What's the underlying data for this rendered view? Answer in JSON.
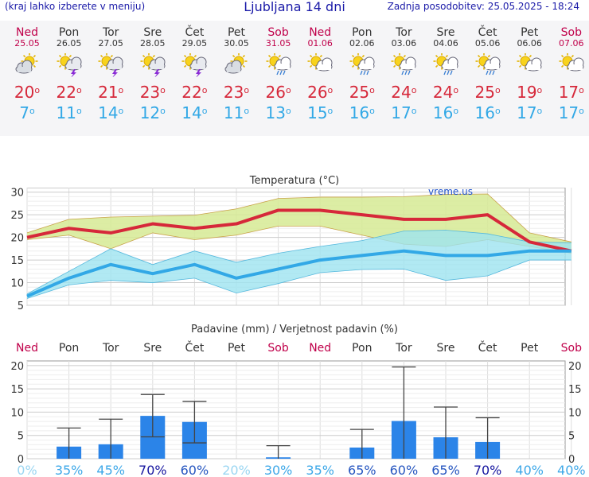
{
  "header": {
    "menu_hint": "(kraj lahko izberete v meniju)",
    "title": "Ljubljana 14 dni",
    "updated": "Zadnja posodobitev: 25.05.2025 - 18:24"
  },
  "forecast": [
    {
      "day": "Ned",
      "date": "25.05",
      "weekend": true,
      "icon": "partly-cloudy-icon",
      "tmax": "20",
      "tmin": "7"
    },
    {
      "day": "Pon",
      "date": "26.05",
      "weekend": false,
      "icon": "thunderstorm-sun-icon",
      "tmax": "22",
      "tmin": "11"
    },
    {
      "day": "Tor",
      "date": "27.05",
      "weekend": false,
      "icon": "thunderstorm-sun-icon",
      "tmax": "21",
      "tmin": "14"
    },
    {
      "day": "Sre",
      "date": "28.05",
      "weekend": false,
      "icon": "thunderstorm-sun-icon",
      "tmax": "23",
      "tmin": "12"
    },
    {
      "day": "Čet",
      "date": "29.05",
      "weekend": false,
      "icon": "thunderstorm-sun-icon",
      "tmax": "22",
      "tmin": "14"
    },
    {
      "day": "Pet",
      "date": "30.05",
      "weekend": false,
      "icon": "partly-cloudy-icon",
      "tmax": "23",
      "tmin": "11"
    },
    {
      "day": "Sob",
      "date": "31.05",
      "weekend": true,
      "icon": "sun-cloud-rain-icon",
      "tmax": "26",
      "tmin": "13"
    },
    {
      "day": "Ned",
      "date": "01.06",
      "weekend": true,
      "icon": "sun-cloud-icon",
      "tmax": "26",
      "tmin": "15"
    },
    {
      "day": "Pon",
      "date": "02.06",
      "weekend": false,
      "icon": "sun-cloud-rain-icon",
      "tmax": "25",
      "tmin": "16"
    },
    {
      "day": "Tor",
      "date": "03.06",
      "weekend": false,
      "icon": "sun-cloud-rain-icon",
      "tmax": "24",
      "tmin": "17"
    },
    {
      "day": "Sre",
      "date": "04.06",
      "weekend": false,
      "icon": "sun-cloud-rain-icon",
      "tmax": "24",
      "tmin": "16"
    },
    {
      "day": "Čet",
      "date": "05.06",
      "weekend": false,
      "icon": "sun-cloud-rain-icon",
      "tmax": "25",
      "tmin": "16"
    },
    {
      "day": "Pet",
      "date": "06.06",
      "weekend": false,
      "icon": "sun-cloud-icon",
      "tmax": "19",
      "tmin": "17"
    },
    {
      "day": "Sob",
      "date": "07.06",
      "weekend": true,
      "icon": "sun-cloud-icon",
      "tmax": "17",
      "tmin": "17"
    }
  ],
  "colors": {
    "weekend": "#c0004a",
    "tmax": "#d6283a",
    "tmin": "#32a8e6",
    "tmax_band": "#d6ea94",
    "tmin_band": "#9ee3f0",
    "bar": "#2b84e8",
    "prob_low": "#6cc8f0",
    "prob_high": "#1717a0"
  },
  "chart_data": [
    {
      "type": "line",
      "title": "Temperatura (°C)",
      "watermark": "vreme.us",
      "x": [
        "Ned",
        "Pon",
        "Tor",
        "Sre",
        "Čet",
        "Pet",
        "Sob",
        "Ned",
        "Pon",
        "Tor",
        "Sre",
        "Čet",
        "Pet",
        "Sob"
      ],
      "ylim": [
        5,
        31
      ],
      "yticks": [
        5,
        10,
        15,
        20,
        25,
        30
      ],
      "grid": true,
      "series": [
        {
          "name": "tmax",
          "values": [
            20,
            22,
            21,
            23,
            22,
            23,
            26,
            26,
            25,
            24,
            24,
            25,
            19,
            17
          ],
          "band_low": [
            19.5,
            20.5,
            17.5,
            21,
            19.5,
            20.5,
            22.5,
            22.5,
            20.5,
            18.5,
            18,
            19.5,
            18,
            16.5
          ],
          "band_high": [
            21,
            24,
            24.5,
            24.7,
            24.9,
            26.3,
            28.6,
            28.9,
            28.9,
            29,
            29.5,
            29.6,
            21,
            19
          ]
        },
        {
          "name": "tmin",
          "values": [
            7,
            11,
            14,
            12,
            14,
            11,
            13,
            15,
            16,
            17,
            16,
            16,
            17,
            17
          ],
          "band_low": [
            6.5,
            9.5,
            10.5,
            10,
            11,
            7.7,
            9.8,
            12.2,
            12.9,
            13,
            10.5,
            11.5,
            15,
            15
          ],
          "band_high": [
            7.5,
            12.5,
            17.5,
            14,
            17,
            14.5,
            16.5,
            18,
            19.3,
            21.4,
            21.6,
            20.8,
            19,
            18.8
          ]
        }
      ]
    },
    {
      "type": "bar",
      "title": "Padavine (mm) / Verjetnost padavin (%)",
      "categories": [
        "Ned",
        "Pon",
        "Tor",
        "Sre",
        "Čet",
        "Pet",
        "Sob",
        "Ned",
        "Pon",
        "Tor",
        "Sre",
        "Čet",
        "Pet",
        "Sob"
      ],
      "ylim": [
        0,
        21
      ],
      "yticks": [
        0,
        5,
        10,
        15,
        20
      ],
      "grid": true,
      "values": [
        0,
        2.6,
        3.1,
        9.2,
        7.9,
        0,
        0.3,
        0,
        2.4,
        8.1,
        4.6,
        3.6,
        0,
        0
      ],
      "error_low": [
        0,
        0,
        0,
        4.7,
        3.4,
        0,
        0,
        0,
        0,
        0,
        0,
        0,
        0,
        0
      ],
      "error_high": [
        0,
        6.6,
        8.5,
        13.8,
        12.3,
        0,
        2.8,
        0,
        6.3,
        19.7,
        11.1,
        8.8,
        0,
        0
      ],
      "probability": [
        "0%",
        "35%",
        "45%",
        "70%",
        "60%",
        "20%",
        "30%",
        "35%",
        "65%",
        "60%",
        "65%",
        "70%",
        "40%",
        "40%"
      ],
      "probability_values": [
        0,
        35,
        45,
        70,
        60,
        20,
        30,
        35,
        65,
        60,
        65,
        70,
        40,
        40
      ]
    }
  ]
}
